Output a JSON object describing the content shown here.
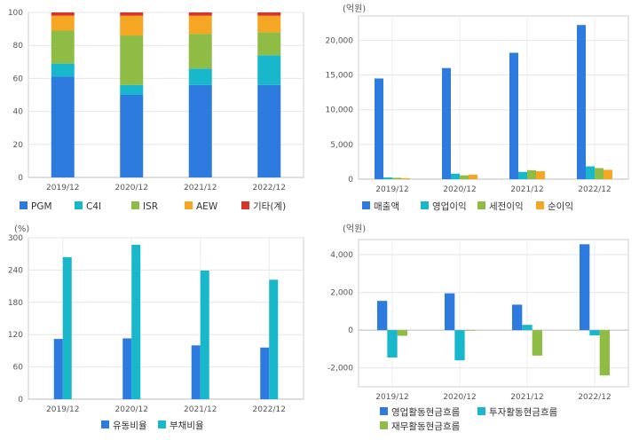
{
  "chart_data": [
    {
      "type": "bar",
      "stacked": true,
      "categories": [
        "2019/12",
        "2020/12",
        "2021/12",
        "2022/12"
      ],
      "ylim": [
        0,
        100
      ],
      "yticks": [
        0,
        20,
        40,
        60,
        80,
        100
      ],
      "grid": true,
      "legend_position": "bottom",
      "series": [
        {
          "name": "PGM",
          "color": "#2e7be0",
          "values": [
            61,
            50,
            56,
            56
          ]
        },
        {
          "name": "C4I",
          "color": "#19b7cc",
          "values": [
            8,
            6,
            10,
            18
          ]
        },
        {
          "name": "ISR",
          "color": "#8fbc45",
          "values": [
            20,
            30,
            21,
            14
          ]
        },
        {
          "name": "AEW",
          "color": "#f5a623",
          "values": [
            9,
            12,
            11,
            10
          ]
        },
        {
          "name": "기타(계)",
          "color": "#d9342b",
          "values": [
            2,
            2,
            2,
            2
          ]
        }
      ]
    },
    {
      "type": "bar",
      "unit": "(억원)",
      "categories": [
        "2019/12",
        "2020/12",
        "2021/12",
        "2022/12"
      ],
      "ylim": [
        0,
        23500
      ],
      "yticks": [
        0,
        5000,
        10000,
        15000,
        20000
      ],
      "yticklabels": [
        "0",
        "5,000",
        "10,000",
        "15,000",
        "20,000"
      ],
      "grid": true,
      "legend_position": "bottom",
      "series": [
        {
          "name": "매출액",
          "color": "#2e7be0",
          "values": [
            14500,
            16000,
            18200,
            22200
          ]
        },
        {
          "name": "영업이익",
          "color": "#19b7cc",
          "values": [
            250,
            800,
            1050,
            1850
          ]
        },
        {
          "name": "세전이익",
          "color": "#8fbc45",
          "values": [
            200,
            550,
            1300,
            1600
          ]
        },
        {
          "name": "순이익",
          "color": "#f5a623",
          "values": [
            150,
            650,
            1150,
            1350
          ]
        }
      ]
    },
    {
      "type": "bar",
      "unit": "(%)",
      "categories": [
        "2019/12",
        "2020/12",
        "2021/12",
        "2022/12"
      ],
      "ylim": [
        0,
        300
      ],
      "yticks": [
        0,
        60,
        120,
        180,
        240,
        300
      ],
      "grid": true,
      "legend_position": "bottom",
      "series": [
        {
          "name": "유동비율",
          "color": "#2e7be0",
          "values": [
            112,
            113,
            100,
            96
          ]
        },
        {
          "name": "부채비율",
          "color": "#19b7cc",
          "values": [
            264,
            287,
            239,
            222
          ]
        }
      ]
    },
    {
      "type": "bar",
      "unit": "(억원)",
      "categories": [
        "2019/12",
        "2020/12",
        "2021/12",
        "2022/12"
      ],
      "ylim": [
        -3000,
        4800
      ],
      "yticks": [
        -2000,
        0,
        2000,
        4000
      ],
      "yticklabels": [
        "-2,000",
        "0",
        "2,000",
        "4,000"
      ],
      "grid": true,
      "legend_position": "bottom",
      "series": [
        {
          "name": "영업활동현금흐름",
          "color": "#2e7be0",
          "values": [
            1550,
            1950,
            1350,
            4550
          ]
        },
        {
          "name": "투자활동현금흐름",
          "color": "#19b7cc",
          "values": [
            -1450,
            -1600,
            280,
            -280
          ]
        },
        {
          "name": "재무활동현금흐름",
          "color": "#8fbc45",
          "values": [
            -300,
            -30,
            -1350,
            -2400
          ]
        }
      ]
    }
  ]
}
